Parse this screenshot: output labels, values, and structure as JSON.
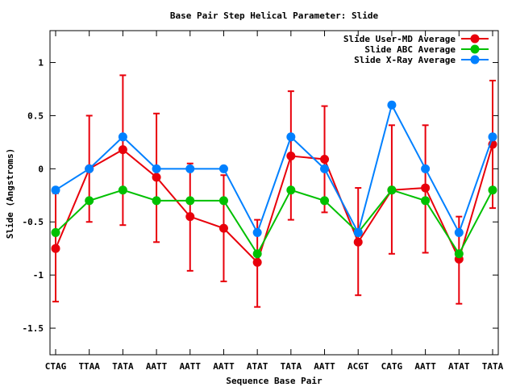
{
  "chart_data": {
    "type": "line",
    "title": "Base Pair Step Helical Parameter: Slide",
    "xlabel": "Sequence Base Pair",
    "ylabel": "Slide (Angstroms)",
    "ylim": [
      -1.75,
      1.3
    ],
    "yticks": [
      -1.5,
      -1,
      -0.5,
      0,
      0.5,
      1
    ],
    "ytick_labels": [
      "-1.5",
      "-1",
      "-0.5",
      "0",
      "0.5",
      "1"
    ],
    "categories": [
      "CTAG",
      "TTAA",
      "TATA",
      "AATT",
      "AATT",
      "AATT",
      "ATAT",
      "TATA",
      "AATT",
      "ACGT",
      "CATG",
      "AATT",
      "ATAT",
      "TATA"
    ],
    "grid": false,
    "legend_position": "top-right",
    "series": [
      {
        "name": "Slide User-MD Average",
        "color": "#e8000b",
        "values": [
          -0.75,
          0.0,
          0.18,
          -0.08,
          -0.45,
          -0.56,
          -0.88,
          0.12,
          0.09,
          -0.69,
          -0.2,
          -0.18,
          -0.85,
          0.23
        ],
        "err_low": [
          -1.25,
          -0.5,
          -0.53,
          -0.69,
          -0.96,
          -1.06,
          -1.3,
          -0.48,
          -0.41,
          -1.19,
          -0.8,
          -0.79,
          -1.27,
          -0.37
        ],
        "err_high": [
          -0.23,
          0.5,
          0.88,
          0.52,
          0.05,
          -0.06,
          -0.48,
          0.73,
          0.59,
          -0.18,
          0.41,
          0.41,
          -0.45,
          0.83
        ]
      },
      {
        "name": "Slide ABC Average",
        "color": "#00c000",
        "values": [
          -0.6,
          -0.3,
          -0.2,
          -0.3,
          -0.3,
          -0.3,
          -0.8,
          -0.2,
          -0.3,
          -0.6,
          -0.2,
          -0.3,
          -0.8,
          -0.2
        ]
      },
      {
        "name": "Slide X-Ray Average",
        "color": "#0080ff",
        "values": [
          -0.2,
          0.0,
          0.3,
          0.0,
          0.0,
          0.0,
          -0.6,
          0.3,
          0.0,
          -0.6,
          0.6,
          0.0,
          -0.6,
          0.3
        ]
      }
    ]
  }
}
